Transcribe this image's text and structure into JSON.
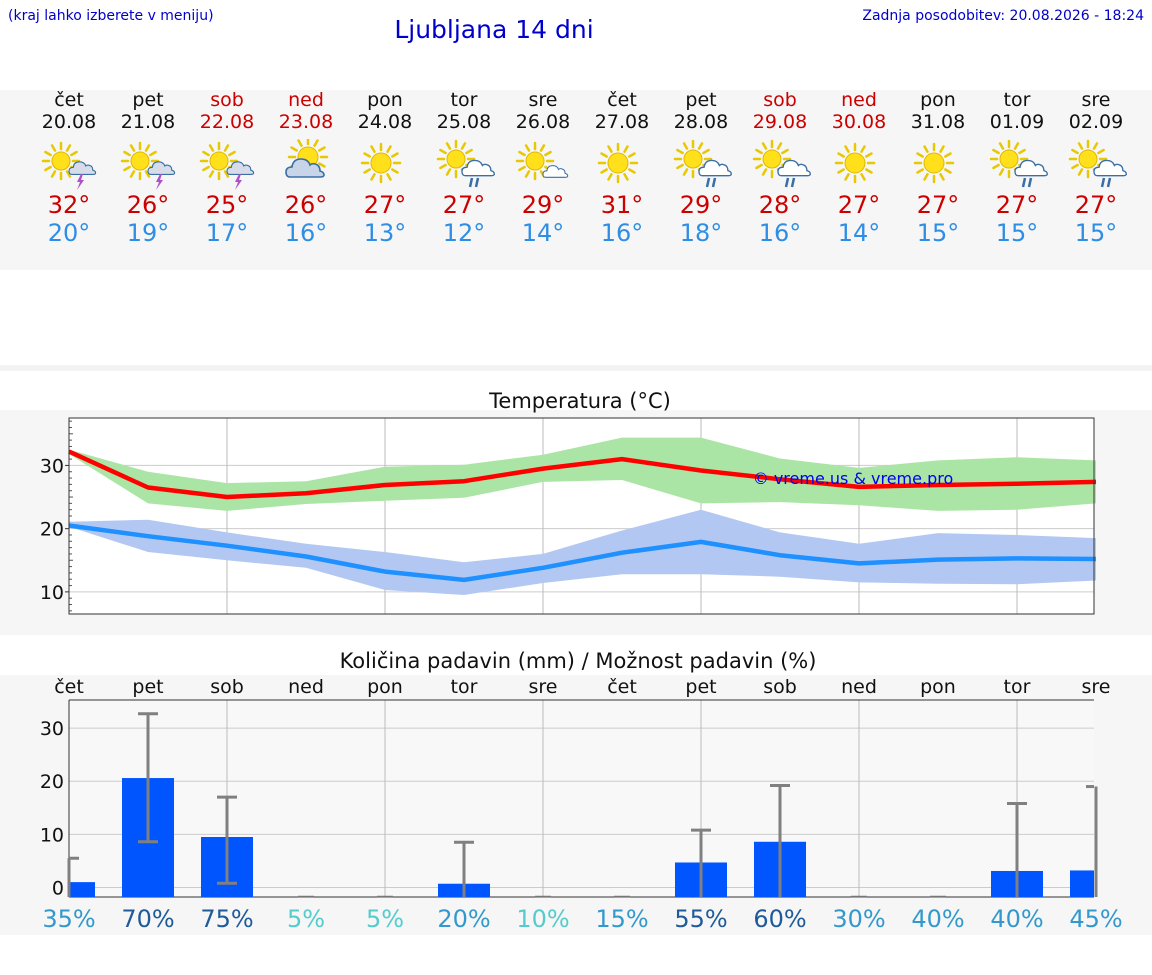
{
  "header": {
    "hint": "(kraj lahko izberete v meniju)",
    "title": "Ljubljana 14 dni",
    "updated": "Zadnja posodobitev: 20.08.2026 - 18:24"
  },
  "days": [
    {
      "name": "čet",
      "date": "20.08",
      "weekend": false,
      "icon": "sun-cloud-lightning-icon",
      "tmax": "32°",
      "tmin": "20°"
    },
    {
      "name": "pet",
      "date": "21.08",
      "weekend": false,
      "icon": "sun-cloud-lightning-icon",
      "tmax": "26°",
      "tmin": "19°"
    },
    {
      "name": "sob",
      "date": "22.08",
      "weekend": true,
      "icon": "sun-cloud-lightning-icon",
      "tmax": "25°",
      "tmin": "17°"
    },
    {
      "name": "ned",
      "date": "23.08",
      "weekend": true,
      "icon": "sun-behind-cloud-icon",
      "tmax": "26°",
      "tmin": "16°"
    },
    {
      "name": "pon",
      "date": "24.08",
      "weekend": false,
      "icon": "sun-icon",
      "tmax": "27°",
      "tmin": "13°"
    },
    {
      "name": "tor",
      "date": "25.08",
      "weekend": false,
      "icon": "sun-cloud-rain-icon",
      "tmax": "27°",
      "tmin": "12°"
    },
    {
      "name": "sre",
      "date": "26.08",
      "weekend": false,
      "icon": "sun-small-cloud-icon",
      "tmax": "29°",
      "tmin": "14°"
    },
    {
      "name": "čet",
      "date": "27.08",
      "weekend": false,
      "icon": "sun-icon",
      "tmax": "31°",
      "tmin": "16°"
    },
    {
      "name": "pet",
      "date": "28.08",
      "weekend": false,
      "icon": "sun-cloud-rain-icon",
      "tmax": "29°",
      "tmin": "18°"
    },
    {
      "name": "sob",
      "date": "29.08",
      "weekend": true,
      "icon": "sun-cloud-rain-icon",
      "tmax": "28°",
      "tmin": "16°"
    },
    {
      "name": "ned",
      "date": "30.08",
      "weekend": true,
      "icon": "sun-icon",
      "tmax": "27°",
      "tmin": "14°"
    },
    {
      "name": "pon",
      "date": "31.08",
      "weekend": false,
      "icon": "sun-icon",
      "tmax": "27°",
      "tmin": "15°"
    },
    {
      "name": "tor",
      "date": "01.09",
      "weekend": false,
      "icon": "sun-cloud-rain-icon",
      "tmax": "27°",
      "tmin": "15°"
    },
    {
      "name": "sre",
      "date": "02.09",
      "weekend": false,
      "icon": "sun-cloud-rain-icon",
      "tmax": "27°",
      "tmin": "15°"
    }
  ],
  "colors": {
    "max_line": "#ff0000",
    "max_band": "#abe5a5",
    "min_line": "#1e90ff",
    "min_band": "#b2c8f2",
    "precip_bar": "#0055ff",
    "error_bar": "#808080"
  },
  "chart_data": [
    {
      "type": "line",
      "title": "Temperatura (°C)",
      "watermark": "© vreme.us & vreme.pro",
      "x": [
        "20.08",
        "21.08",
        "22.08",
        "23.08",
        "24.08",
        "25.08",
        "26.08",
        "27.08",
        "28.08",
        "29.08",
        "30.08",
        "31.08",
        "01.09",
        "02.09"
      ],
      "ylim": [
        6.5,
        37.5
      ],
      "yticks": [
        10,
        20,
        30
      ],
      "grid": true,
      "series": [
        {
          "role": "max",
          "values": [
            32.2,
            26.5,
            25.0,
            25.6,
            26.9,
            27.5,
            29.5,
            31.0,
            29.2,
            27.8,
            26.6,
            26.9,
            27.1,
            27.4
          ],
          "low": [
            31.8,
            24.0,
            22.8,
            23.9,
            24.4,
            24.9,
            27.4,
            27.7,
            24.0,
            24.2,
            23.7,
            22.8,
            23.0,
            24.0
          ],
          "high": [
            32.5,
            29.0,
            27.2,
            27.5,
            29.8,
            30.1,
            31.7,
            34.4,
            34.4,
            31.1,
            29.6,
            30.8,
            31.3,
            30.8
          ]
        },
        {
          "role": "min",
          "values": [
            20.5,
            18.8,
            17.3,
            15.6,
            13.2,
            11.9,
            13.8,
            16.2,
            17.9,
            15.8,
            14.5,
            15.1,
            15.3,
            15.2
          ],
          "low": [
            20.3,
            16.3,
            15.0,
            13.8,
            10.3,
            9.5,
            11.4,
            12.8,
            12.8,
            12.4,
            11.5,
            11.3,
            11.2,
            11.8
          ],
          "high": [
            21.1,
            21.4,
            19.4,
            17.6,
            16.3,
            14.7,
            16.0,
            19.7,
            23.0,
            19.4,
            17.6,
            19.3,
            19.0,
            18.5
          ]
        }
      ]
    },
    {
      "type": "bar",
      "title": "Količina padavin (mm) / Možnost padavin (%)",
      "categories": [
        "čet",
        "pet",
        "sob",
        "ned",
        "pon",
        "tor",
        "sre",
        "čet",
        "pet",
        "sob",
        "ned",
        "pon",
        "tor",
        "sre"
      ],
      "ylim": [
        -1.8,
        35.3
      ],
      "yticks": [
        0,
        10,
        20,
        30
      ],
      "grid": true,
      "values": [
        1.0,
        20.6,
        9.5,
        0,
        0,
        0.7,
        0,
        0,
        4.7,
        8.6,
        0,
        0,
        3.1,
        3.2
      ],
      "error_high": [
        5.5,
        32.7,
        17.0,
        0,
        0,
        8.5,
        0,
        0,
        10.8,
        19.2,
        0,
        0,
        15.8,
        19.0
      ],
      "error_low": [
        null,
        8.6,
        0.8,
        null,
        null,
        null,
        null,
        null,
        null,
        null,
        null,
        null,
        null,
        null
      ],
      "probability": [
        "35%",
        "70%",
        "75%",
        "5%",
        "5%",
        "20%",
        "10%",
        "15%",
        "55%",
        "60%",
        "30%",
        "40%",
        "40%",
        "45%"
      ],
      "probability_colors": [
        "#3399cc",
        "#1f5a99",
        "#1f5a99",
        "#55cccc",
        "#55cccc",
        "#3399cc",
        "#55cccc",
        "#3399cc",
        "#1f5a99",
        "#1f5a99",
        "#3399cc",
        "#3399cc",
        "#3399cc",
        "#3399cc"
      ]
    }
  ]
}
